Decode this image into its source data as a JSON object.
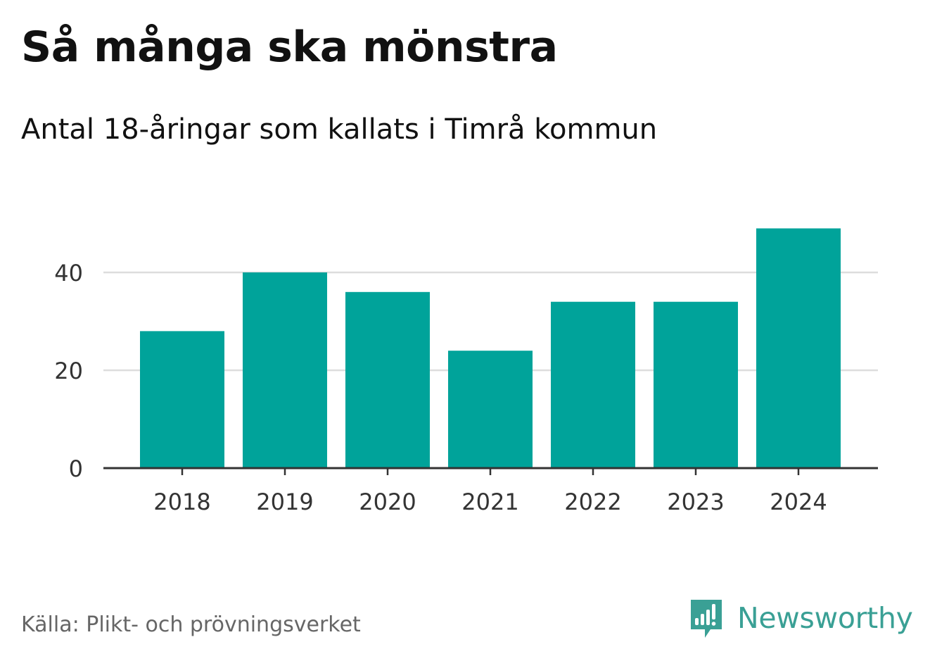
{
  "header": {
    "title": "Så många ska mönstra",
    "subtitle": "Antal 18-åringar som kallats i Timrå kommun"
  },
  "footer": {
    "source": "Källa: Plikt- och prövningsverket",
    "brand": "Newsworthy"
  },
  "colors": {
    "bar": "#00a39a",
    "grid": "#dddddd",
    "axis": "#333333",
    "tick_text": "#333333",
    "brand": "#3aa095"
  },
  "chart_data": {
    "type": "bar",
    "categories": [
      "2018",
      "2019",
      "2020",
      "2021",
      "2022",
      "2023",
      "2024"
    ],
    "values": [
      28,
      40,
      36,
      24,
      34,
      34,
      49
    ],
    "ylim": [
      0,
      50
    ],
    "yticks": [
      0,
      20,
      40
    ],
    "grid": true,
    "legend": "none",
    "xlabel": "",
    "ylabel": ""
  }
}
